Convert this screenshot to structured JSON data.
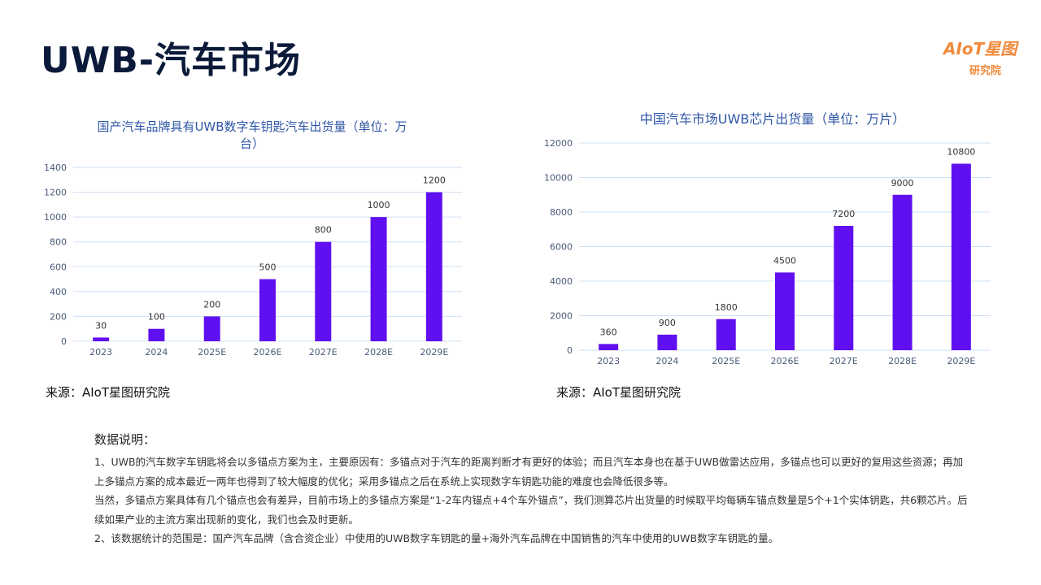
{
  "page": {
    "title": "UWB-汽车市场",
    "logo": {
      "main": "AIoT星图",
      "sub": "研究院"
    }
  },
  "chart_data": [
    {
      "type": "bar",
      "title": "国产汽车品牌具有UWB数字车钥匙汽车出货量（单位：万台）",
      "title_lines": [
        "国产汽车品牌具有UWB数字车钥匙汽车出货量（单位：万",
        "台）"
      ],
      "categories": [
        "2023",
        "2024",
        "2025E",
        "2026E",
        "2027E",
        "2028E",
        "2029E"
      ],
      "values": [
        30,
        100,
        200,
        500,
        800,
        1000,
        1200
      ],
      "ylim": [
        0,
        1400
      ],
      "yticks": [
        0,
        200,
        400,
        600,
        800,
        1000,
        1200,
        1400
      ],
      "grid": true,
      "color": "#6010f0",
      "source": "来源：AIoT星图研究院"
    },
    {
      "type": "bar",
      "title": "中国汽车市场UWB芯片出货量（单位：万片）",
      "title_lines": [
        "中国汽车市场UWB芯片出货量（单位：万片）"
      ],
      "categories": [
        "2023",
        "2024",
        "2025E",
        "2026E",
        "2027E",
        "2028E",
        "2029E"
      ],
      "values": [
        360,
        900,
        1800,
        4500,
        7200,
        9000,
        10800
      ],
      "ylim": [
        0,
        12000
      ],
      "yticks": [
        0,
        2000,
        4000,
        6000,
        8000,
        10000,
        12000
      ],
      "grid": true,
      "color": "#6010f0",
      "source": "来源：AIoT星图研究院"
    }
  ],
  "notes": {
    "heading": "数据说明：",
    "paragraphs": [
      "1、UWB的汽车数字车钥匙将会以多锚点方案为主，主要原因有：多锚点对于汽车的距离判断才有更好的体验；而且汽车本身也在基于UWB做雷达应用，多锚点也可以更好的复用这些资源；再加上多锚点方案的成本最近一两年也得到了较大幅度的优化；采用多锚点之后在系统上实现数字车钥匙功能的难度也会降低很多等。",
      "当然，多锚点方案具体有几个锚点也会有差异，目前市场上的多锚点方案是“1-2车内锚点+4个车外锚点”，我们测算芯片出货量的时候取平均每辆车锚点数量是5个+1个实体钥匙，共6颗芯片。后续如果产业的主流方案出现新的变化，我们也会及时更新。",
      "2、该数据统计的范围是：国产汽车品牌（含合资企业）中使用的UWB数字车钥匙的量+海外汽车品牌在中国销售的汽车中使用的UWB数字车钥匙的量。"
    ]
  }
}
